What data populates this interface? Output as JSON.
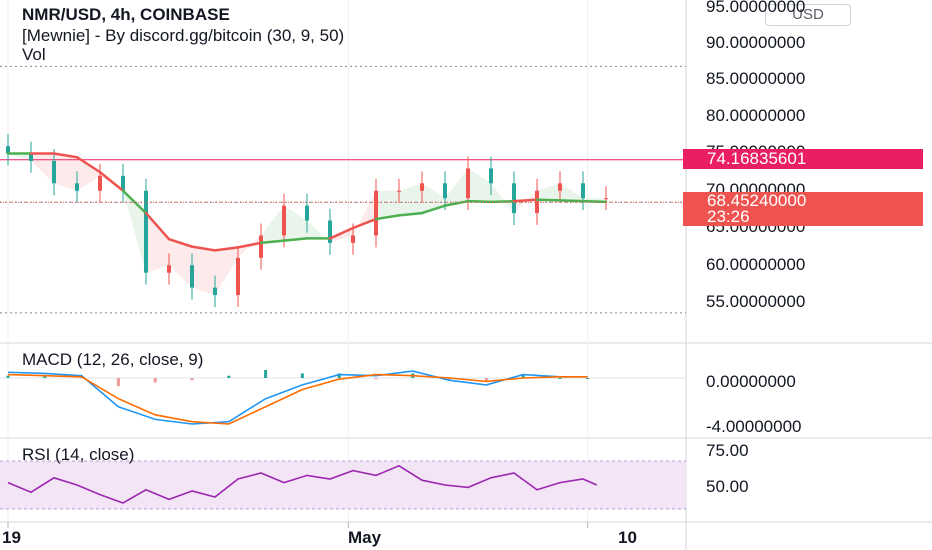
{
  "header": {
    "symbol_line": "NMR/USD, 4h, COINBASE",
    "indicator_line": "[Mewnie] - By discord.gg/bitcoin (30, 9, 50)",
    "volume_label": "Vol",
    "currency": "USD",
    "macd_title": "MACD (12, 26, close, 9)",
    "rsi_title": "RSI (14, close)"
  },
  "badges": {
    "resistance_price": "74.16835601",
    "last_price": "68.45240000",
    "countdown": "23:26"
  },
  "colors": {
    "up": "#ef5350",
    "down": "#26a69a",
    "resistance": "#e91e63",
    "last_price": "#ef5350",
    "band_bear": "#ef5350",
    "band_bull": "#4caf50",
    "macd_line": "#2196f3",
    "signal_line": "#ff6d00",
    "rsi_line": "#9c27b0",
    "rsi_band": "#f3e5f5"
  },
  "chart_data": [
    {
      "type": "candlestick",
      "title": "NMR/USD, 4h, COINBASE",
      "y_axis_labels": [
        "95.00000000",
        "90.00000000",
        "85.00000000",
        "80.00000000",
        "75.00000000",
        "70.00000000",
        "65.00000000",
        "60.00000000",
        "55.00000000"
      ],
      "y_ticks": [
        95,
        90,
        85,
        80,
        75,
        70,
        65,
        60,
        55
      ],
      "ylim": [
        52.5,
        95.5
      ],
      "x_tick_labels": [
        "19",
        "May",
        "10"
      ],
      "x_ticks": [
        0,
        74,
        126
      ],
      "resistance_level": 74.16835601,
      "last_price": 68.4524,
      "dotted_levels": [
        86.7,
        53.6,
        68.45
      ],
      "series": [
        {
          "name": "price",
          "x": [
            0,
            5,
            10,
            15,
            20,
            25,
            30,
            35,
            40,
            45,
            50,
            55,
            60,
            65,
            70,
            75,
            80,
            85,
            90,
            95,
            100,
            105,
            110,
            115,
            120,
            125,
            130
          ],
          "close": [
            75,
            74,
            71,
            70,
            72,
            70,
            59,
            60,
            57,
            56,
            61,
            64,
            68,
            66,
            63,
            64,
            70,
            70,
            71,
            69,
            73,
            71,
            67,
            70,
            71,
            69,
            69
          ]
        },
        {
          "name": "baseline",
          "x": [
            0,
            5,
            10,
            15,
            20,
            25,
            30,
            35,
            40,
            45,
            50,
            55,
            60,
            65,
            70,
            75,
            80,
            85,
            90,
            95,
            100,
            105,
            110,
            115,
            120,
            125,
            130
          ],
          "values": [
            75.0,
            75.0,
            75.0,
            74.5,
            72.5,
            70.0,
            67.0,
            63.5,
            62.5,
            62.0,
            62.4,
            63.0,
            63.3,
            63.6,
            63.6,
            65.0,
            66.2,
            66.7,
            67.0,
            68.0,
            68.6,
            68.5,
            68.6,
            68.8,
            68.7,
            68.6,
            68.5
          ]
        }
      ]
    },
    {
      "type": "line",
      "title": "MACD (12, 26, close, 9)",
      "y_axis_labels": [
        "0.00000000",
        "-4.00000000"
      ],
      "y_ticks": [
        0,
        -4
      ],
      "ylim": [
        -4.3,
        1.2
      ],
      "series": [
        {
          "name": "MACD",
          "x": [
            0,
            8,
            16,
            24,
            32,
            40,
            48,
            56,
            64,
            72,
            80,
            88,
            96,
            104,
            112,
            120,
            126
          ],
          "values": [
            0.5,
            0.4,
            0.2,
            -2.5,
            -3.6,
            -4.0,
            -3.8,
            -1.8,
            -0.6,
            0.3,
            0.2,
            0.6,
            -0.2,
            -0.6,
            0.3,
            0.1,
            0.1
          ]
        },
        {
          "name": "Signal",
          "x": [
            0,
            8,
            16,
            24,
            32,
            40,
            48,
            56,
            64,
            72,
            80,
            88,
            96,
            104,
            112,
            120,
            126
          ],
          "values": [
            0.3,
            0.2,
            0.1,
            -1.8,
            -3.2,
            -3.8,
            -4.0,
            -2.5,
            -1.0,
            -0.1,
            0.3,
            0.2,
            0.0,
            -0.3,
            0.0,
            0.1,
            0.1
          ]
        }
      ]
    },
    {
      "type": "line",
      "title": "RSI (14, close)",
      "y_axis_labels": [
        "75.00",
        "50.00"
      ],
      "y_ticks": [
        75,
        50
      ],
      "ylim": [
        23,
        77
      ],
      "band": [
        30,
        70
      ],
      "series": [
        {
          "name": "RSI",
          "x": [
            0,
            5,
            10,
            15,
            20,
            25,
            30,
            35,
            40,
            45,
            50,
            55,
            60,
            65,
            70,
            75,
            80,
            85,
            90,
            95,
            100,
            105,
            110,
            115,
            120,
            125,
            128
          ],
          "values": [
            52,
            44,
            56,
            50,
            42,
            35,
            46,
            38,
            45,
            40,
            55,
            60,
            52,
            58,
            55,
            62,
            58,
            66,
            54,
            50,
            48,
            56,
            60,
            46,
            52,
            55,
            50
          ]
        }
      ]
    }
  ]
}
